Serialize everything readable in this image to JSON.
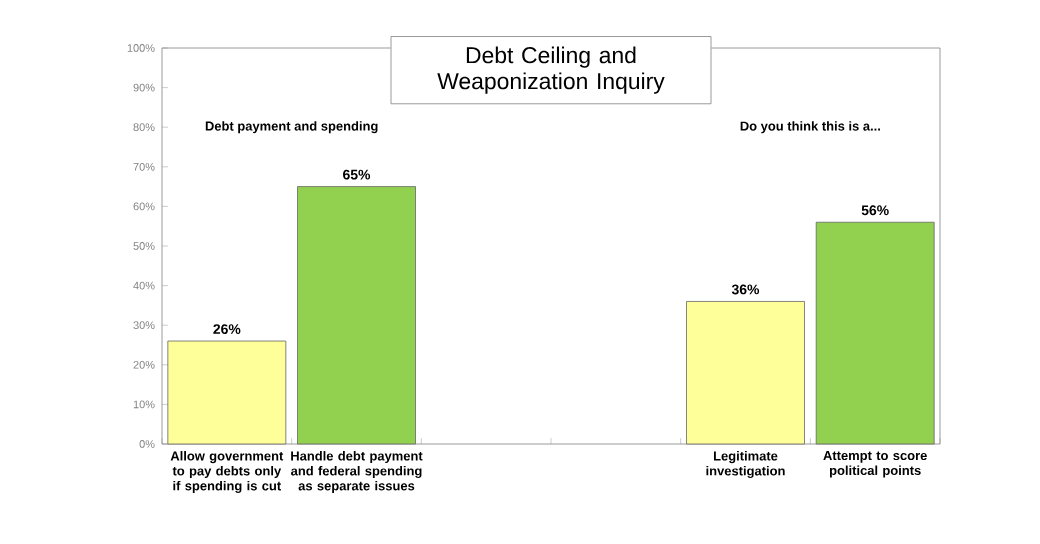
{
  "chart_data": {
    "type": "bar",
    "title": "Debt Ceiling and Weaponization Inquiry",
    "categories": [
      "Allow government to pay debts only if spending is cut",
      "Handle debt payment and federal spending as separate issues",
      null,
      null,
      "Legitimate investigation",
      "Attempt to score political points"
    ],
    "values": [
      26,
      65,
      null,
      null,
      36,
      56
    ],
    "colors": [
      "#ffff99",
      "#92d050",
      null,
      null,
      "#ffff99",
      "#92d050"
    ],
    "value_labels": [
      "26%",
      "65%",
      null,
      null,
      "36%",
      "56%"
    ],
    "annotations": [
      "Debt payment and spending",
      "Do you think this is a..."
    ],
    "ylim": [
      0,
      100
    ],
    "yticks": [
      {
        "value": 0,
        "label": "0%"
      },
      {
        "value": 10,
        "label": "10%"
      },
      {
        "value": 20,
        "label": "20%"
      },
      {
        "value": 30,
        "label": "30%"
      },
      {
        "value": 40,
        "label": "40%"
      },
      {
        "value": 50,
        "label": "50%"
      },
      {
        "value": 60,
        "label": "60%"
      },
      {
        "value": 70,
        "label": "70%"
      },
      {
        "value": 80,
        "label": "80%"
      },
      {
        "value": 90,
        "label": "90%"
      },
      {
        "value": 100,
        "label": "100%"
      }
    ],
    "grid": false
  }
}
